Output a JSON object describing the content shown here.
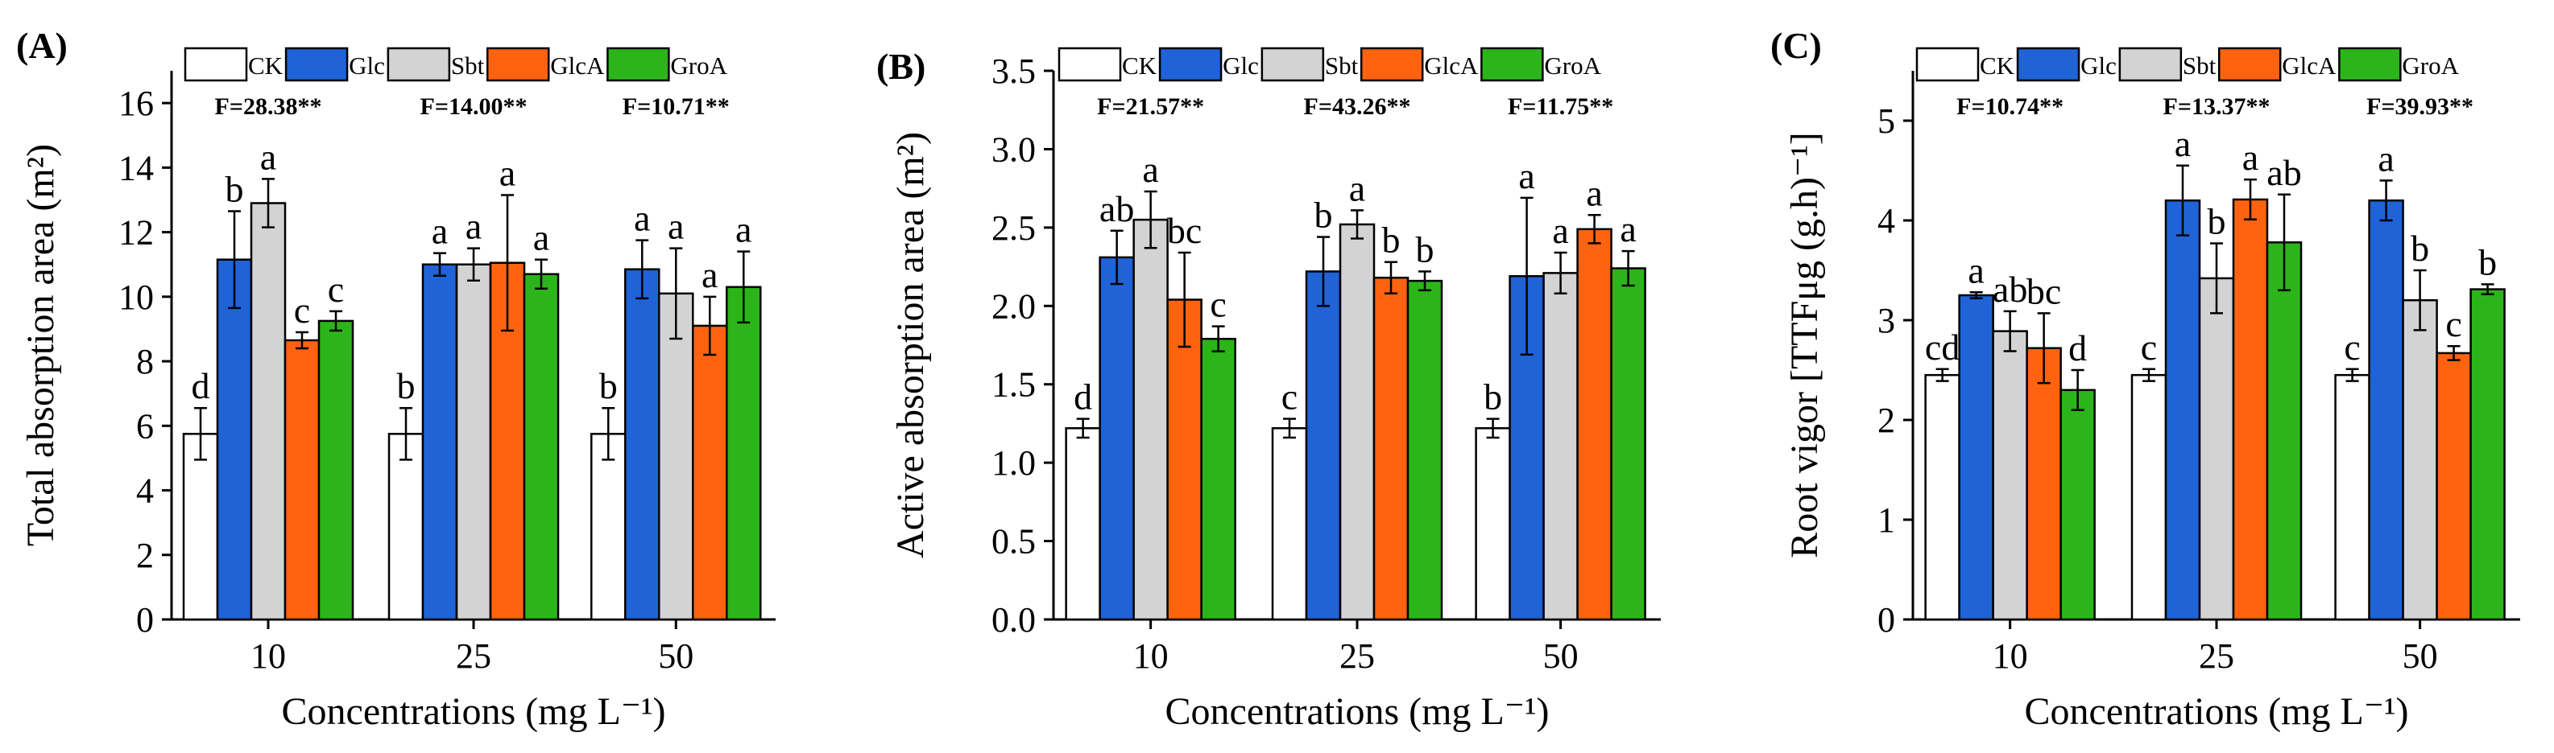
{
  "series_colors": {
    "CK": "#ffffff",
    "Glc": "#1f63d6",
    "Sbt": "#d3d3d3",
    "GlcA": "#ff6310",
    "GroA": "#2cb51a"
  },
  "chart_data": [
    {
      "type": "bar",
      "panel_label": "(A)",
      "ylabel": "Total absorption area (m²)",
      "xlabel": "Concentrations (mg L⁻¹)",
      "categories": [
        "10",
        "25",
        "50"
      ],
      "ylim": [
        0,
        17
      ],
      "yticks": [
        0,
        2,
        4,
        6,
        8,
        10,
        12,
        14,
        16
      ],
      "ytick_labels": [
        "0",
        "2",
        "4",
        "6",
        "8",
        "10",
        "12",
        "14",
        "16"
      ],
      "f_stats": [
        "F=28.38**",
        "F=14.00**",
        "F=10.71**"
      ],
      "series": [
        {
          "name": "CK",
          "values": [
            5.75,
            5.75,
            5.75
          ],
          "errors": [
            0.8,
            0.8,
            0.8
          ],
          "letters": [
            "d",
            "b",
            "b"
          ]
        },
        {
          "name": "Glc",
          "values": [
            11.15,
            11.0,
            10.85
          ],
          "errors": [
            1.5,
            0.35,
            0.9
          ],
          "letters": [
            "b",
            "a",
            "a"
          ]
        },
        {
          "name": "Sbt",
          "values": [
            12.9,
            11.0,
            10.1
          ],
          "errors": [
            0.75,
            0.5,
            1.4
          ],
          "letters": [
            "a",
            "a",
            "a"
          ]
        },
        {
          "name": "GlcA",
          "values": [
            8.65,
            11.05,
            9.1
          ],
          "errors": [
            0.25,
            2.1,
            0.9
          ],
          "letters": [
            "c",
            "a",
            "a"
          ]
        },
        {
          "name": "GroA",
          "values": [
            9.25,
            10.7,
            10.3
          ],
          "errors": [
            0.3,
            0.45,
            1.1
          ],
          "letters": [
            "c",
            "a",
            "a"
          ]
        }
      ]
    },
    {
      "type": "bar",
      "panel_label": "(B)",
      "ylabel": "Active absorption area (m²)",
      "xlabel": "Concentrations (mg L⁻¹)",
      "categories": [
        "10",
        "25",
        "50"
      ],
      "ylim": [
        0,
        3.5
      ],
      "yticks": [
        0,
        0.5,
        1.0,
        1.5,
        2.0,
        2.5,
        3.0,
        3.5
      ],
      "ytick_labels": [
        "0.0",
        "0.5",
        "1.0",
        "1.5",
        "2.0",
        "2.5",
        "3.0",
        "3.5"
      ],
      "f_stats": [
        "F=21.57**",
        "F=43.26**",
        "F=11.75**"
      ],
      "series": [
        {
          "name": "CK",
          "values": [
            1.22,
            1.22,
            1.22
          ],
          "errors": [
            0.06,
            0.06,
            0.06
          ],
          "letters": [
            "d",
            "c",
            "b"
          ]
        },
        {
          "name": "Glc",
          "values": [
            2.31,
            2.22,
            2.19
          ],
          "errors": [
            0.17,
            0.22,
            0.5
          ],
          "letters": [
            "ab",
            "b",
            "a"
          ]
        },
        {
          "name": "Sbt",
          "values": [
            2.55,
            2.52,
            2.21
          ],
          "errors": [
            0.18,
            0.09,
            0.13
          ],
          "letters": [
            "a",
            "a",
            "a"
          ]
        },
        {
          "name": "GlcA",
          "values": [
            2.04,
            2.18,
            2.49
          ],
          "errors": [
            0.3,
            0.1,
            0.09
          ],
          "letters": [
            "bc",
            "b",
            "a"
          ]
        },
        {
          "name": "GroA",
          "values": [
            1.79,
            2.16,
            2.24
          ],
          "errors": [
            0.08,
            0.06,
            0.11
          ],
          "letters": [
            "c",
            "b",
            "a"
          ]
        }
      ]
    },
    {
      "type": "bar",
      "panel_label": "(C)",
      "ylabel": "Root vigor [TTFμg (g.h)⁻¹]",
      "xlabel": "Concentrations (mg L⁻¹)",
      "categories": [
        "10",
        "25",
        "50"
      ],
      "ylim": [
        0,
        5.5
      ],
      "yticks": [
        0,
        1,
        2,
        3,
        4,
        5
      ],
      "ytick_labels": [
        "0",
        "1",
        "2",
        "3",
        "4",
        "5"
      ],
      "f_stats": [
        "F=10.74**",
        "F=13.37**",
        "F=39.93**"
      ],
      "series": [
        {
          "name": "CK",
          "values": [
            2.45,
            2.45,
            2.45
          ],
          "errors": [
            0.06,
            0.06,
            0.06
          ],
          "letters": [
            "cd",
            "c",
            "c"
          ]
        },
        {
          "name": "Glc",
          "values": [
            3.25,
            4.2,
            4.2
          ],
          "errors": [
            0.03,
            0.35,
            0.2
          ],
          "letters": [
            "a",
            "a",
            "a"
          ]
        },
        {
          "name": "Sbt",
          "values": [
            2.89,
            3.42,
            3.2
          ],
          "errors": [
            0.2,
            0.35,
            0.3
          ],
          "letters": [
            "ab",
            "b",
            "b"
          ]
        },
        {
          "name": "GlcA",
          "values": [
            2.72,
            4.21,
            2.67
          ],
          "errors": [
            0.35,
            0.2,
            0.07
          ],
          "letters": [
            "bc",
            "a",
            "c"
          ]
        },
        {
          "name": "GroA",
          "values": [
            2.3,
            3.78,
            3.31
          ],
          "errors": [
            0.2,
            0.48,
            0.05
          ],
          "letters": [
            "d",
            "ab",
            "b"
          ]
        }
      ]
    }
  ]
}
